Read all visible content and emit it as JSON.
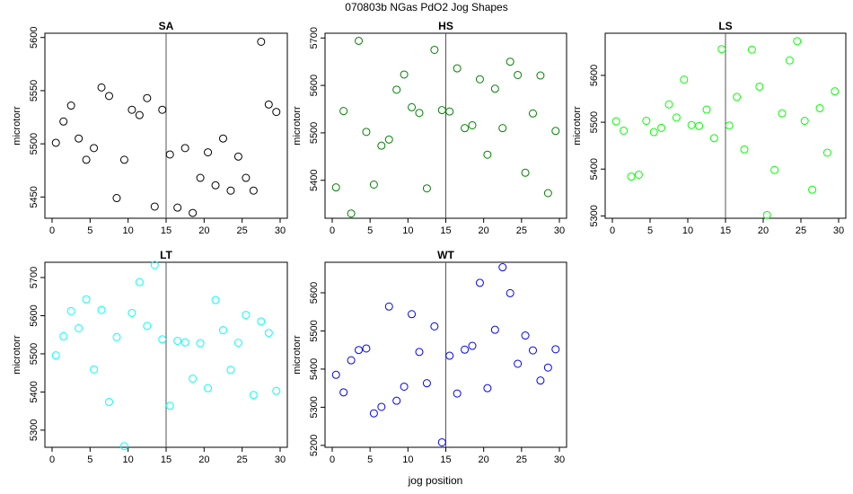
{
  "figure": {
    "title": "070803b   NGas PdO2 Jog Shapes",
    "xlabel": "jog position"
  },
  "chart_data": [
    {
      "type": "scatter",
      "title": "SA",
      "ylabel": "microtorr",
      "xlim": [
        0,
        30
      ],
      "ylim": [
        5430,
        5604
      ],
      "xticks": [
        0,
        5,
        10,
        15,
        20,
        25,
        30
      ],
      "yticks": [
        5450,
        5500,
        5550,
        5600
      ],
      "vline": 15,
      "color": "#000000",
      "x": [
        0.5,
        1.5,
        2.5,
        3.5,
        4.5,
        5.5,
        6.5,
        7.5,
        8.5,
        9.5,
        10.5,
        11.5,
        12.5,
        13.5,
        14.5,
        15.5,
        16.5,
        17.5,
        18.5,
        19.5,
        20.5,
        21.5,
        22.5,
        23.5,
        24.5,
        25.5,
        26.5,
        27.5,
        28.5,
        29.5
      ],
      "y": [
        5501,
        5521,
        5536,
        5505,
        5485,
        5496,
        5553,
        5545,
        5449,
        5485,
        5532,
        5527,
        5543,
        5441,
        5532,
        5490,
        5440,
        5496,
        5435,
        5468,
        5492,
        5461,
        5505,
        5456,
        5488,
        5468,
        5456,
        5596,
        5537,
        5530
      ]
    },
    {
      "type": "scatter",
      "title": "HS",
      "ylabel": "microtorr",
      "xlim": [
        0,
        30
      ],
      "ylim": [
        5320,
        5710
      ],
      "xticks": [
        0,
        5,
        10,
        15,
        20,
        25,
        30
      ],
      "yticks": [
        5400,
        5500,
        5600,
        5700
      ],
      "vline": 15,
      "color": "#008000",
      "x": [
        0.5,
        1.5,
        2.5,
        3.5,
        4.5,
        5.5,
        6.5,
        7.5,
        8.5,
        9.5,
        10.5,
        11.5,
        12.5,
        13.5,
        14.5,
        15.5,
        16.5,
        17.5,
        18.5,
        19.5,
        20.5,
        21.5,
        22.5,
        23.5,
        24.5,
        25.5,
        26.5,
        27.5,
        28.5,
        29.5
      ],
      "y": [
        5385,
        5546,
        5330,
        5694,
        5502,
        5391,
        5473,
        5486,
        5591,
        5623,
        5554,
        5542,
        5383,
        5675,
        5548,
        5545,
        5636,
        5510,
        5516,
        5613,
        5454,
        5593,
        5510,
        5650,
        5622,
        5416,
        5541,
        5621,
        5373,
        5504
      ]
    },
    {
      "type": "scatter",
      "title": "LS",
      "ylabel": "microtorr",
      "xlim": [
        0,
        30
      ],
      "ylim": [
        5295,
        5690
      ],
      "xticks": [
        0,
        5,
        10,
        15,
        20,
        25,
        30
      ],
      "yticks": [
        5300,
        5400,
        5500,
        5600
      ],
      "vline": 15,
      "color": "#00ff00",
      "x": [
        0.5,
        1.5,
        2.5,
        3.5,
        4.5,
        5.5,
        6.5,
        7.5,
        8.5,
        9.5,
        10.5,
        11.5,
        12.5,
        13.5,
        14.5,
        15.5,
        16.5,
        17.5,
        18.5,
        19.5,
        20.5,
        21.5,
        22.5,
        23.5,
        24.5,
        25.5,
        26.5,
        27.5,
        28.5,
        29.5
      ],
      "y": [
        5502,
        5482,
        5384,
        5388,
        5503,
        5479,
        5488,
        5538,
        5510,
        5591,
        5494,
        5492,
        5527,
        5466,
        5656,
        5493,
        5554,
        5442,
        5655,
        5576,
        5302,
        5398,
        5519,
        5632,
        5673,
        5503,
        5356,
        5530,
        5435,
        5566
      ]
    },
    {
      "type": "scatter",
      "title": "LT",
      "ylabel": "microtorr",
      "xlim": [
        0,
        30
      ],
      "ylim": [
        5255,
        5740
      ],
      "xticks": [
        0,
        5,
        10,
        15,
        20,
        25,
        30
      ],
      "yticks": [
        5300,
        5400,
        5500,
        5600,
        5700
      ],
      "vline": 15,
      "color": "#00ffff",
      "x": [
        0.5,
        1.5,
        2.5,
        3.5,
        4.5,
        5.5,
        6.5,
        7.5,
        8.5,
        9.5,
        10.5,
        11.5,
        12.5,
        13.5,
        14.5,
        15.5,
        16.5,
        17.5,
        18.5,
        19.5,
        20.5,
        21.5,
        22.5,
        23.5,
        24.5,
        25.5,
        26.5,
        27.5,
        28.5,
        29.5
      ],
      "y": [
        5496,
        5546,
        5612,
        5567,
        5643,
        5459,
        5615,
        5374,
        5544,
        5258,
        5607,
        5688,
        5573,
        5733,
        5538,
        5364,
        5534,
        5530,
        5435,
        5528,
        5410,
        5641,
        5562,
        5458,
        5529,
        5602,
        5392,
        5585,
        5555,
        5403
      ]
    },
    {
      "type": "scatter",
      "title": "WT",
      "ylabel": "microtorr",
      "xlim": [
        0,
        30
      ],
      "ylim": [
        5195,
        5680
      ],
      "xticks": [
        0,
        5,
        10,
        15,
        20,
        25,
        30
      ],
      "yticks": [
        5200,
        5300,
        5400,
        5500,
        5600
      ],
      "vline": 15,
      "color": "#0000ff",
      "x": [
        0.5,
        1.5,
        2.5,
        3.5,
        4.5,
        5.5,
        6.5,
        7.5,
        8.5,
        9.5,
        10.5,
        11.5,
        12.5,
        13.5,
        14.5,
        15.5,
        16.5,
        17.5,
        18.5,
        19.5,
        20.5,
        21.5,
        22.5,
        23.5,
        24.5,
        25.5,
        26.5,
        27.5,
        28.5,
        29.5
      ],
      "y": [
        5385,
        5339,
        5423,
        5450,
        5454,
        5284,
        5301,
        5564,
        5317,
        5354,
        5544,
        5445,
        5363,
        5512,
        5208,
        5435,
        5336,
        5451,
        5461,
        5626,
        5350,
        5503,
        5667,
        5599,
        5414,
        5488,
        5449,
        5370,
        5404,
        5452
      ]
    }
  ]
}
